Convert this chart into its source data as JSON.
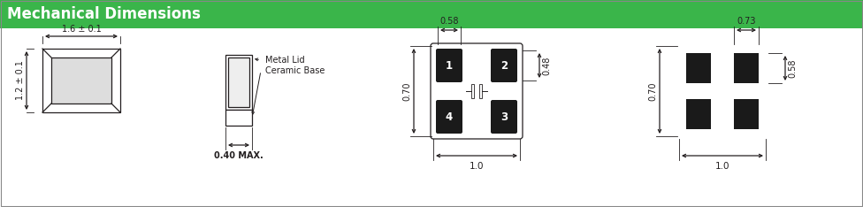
{
  "title": "Mechanical Dimensions",
  "title_bg": "#3ab54a",
  "title_color": "#ffffff",
  "title_fontsize": 12,
  "bg_color": "#ffffff",
  "line_color": "#231f20",
  "pad_color": "#1a1a1a",
  "pad_text_color": "#ffffff",
  "labels": {
    "metal_lid": "Metal Lid",
    "ceramic_base": "Ceramic Base",
    "w_top": "1.6 ± 0.1",
    "h_left": "1.2 ± 0.1",
    "thickness": "0.40 MAX.",
    "pad_w": "0.58",
    "pad_h": "0.48",
    "pkg_w": "1.0",
    "pkg_h": "0.70",
    "pad2_w": "0.73",
    "pad2_h": "0.58",
    "pkg2_w": "1.0",
    "pkg2_h": "0.70"
  },
  "pad_numbers": [
    "1",
    "2",
    "3",
    "4"
  ]
}
